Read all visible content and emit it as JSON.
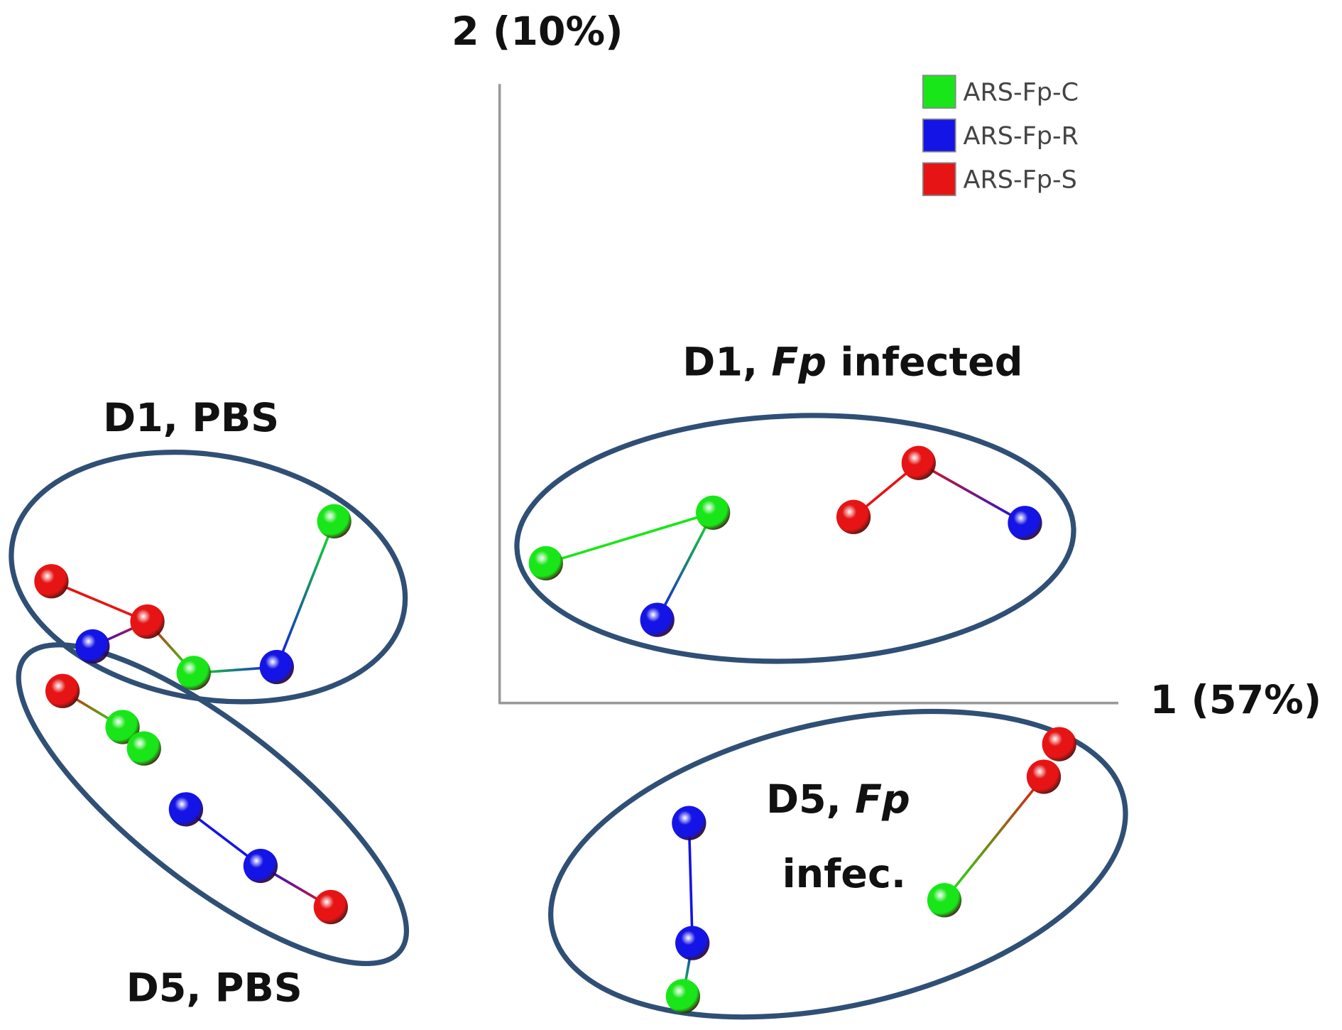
{
  "chart_data": {
    "type": "scatter",
    "x_label": "1 (57%)",
    "y_label": "2 (10%)",
    "xlim": [
      -5.83,
      9.83
    ],
    "ylim": [
      -3.814,
      8.2
    ],
    "legend": "upper right",
    "series": [
      {
        "name": "ARS-Fp-C",
        "color": "#19e619",
        "x": [
          -1.93,
          -3.57,
          -4.4,
          -4.15,
          0.54,
          2.49,
          5.19,
          2.14
        ],
        "values": [
          2.12,
          0.35,
          -0.28,
          -0.53,
          1.63,
          2.22,
          -2.3,
          -3.42
        ]
      },
      {
        "name": "ARS-Fp-R",
        "color": "#1414e6",
        "x": [
          -4.75,
          -2.6,
          -3.66,
          -2.79,
          1.84,
          6.13,
          2.21,
          2.25
        ],
        "values": [
          0.66,
          0.42,
          -1.24,
          -1.9,
          0.97,
          2.1,
          -1.4,
          -2.8
        ]
      },
      {
        "name": "ARS-Fp-S",
        "color": "#e61414",
        "x": [
          -5.23,
          -4.11,
          -5.1,
          -1.97,
          4.13,
          4.89,
          6.53,
          6.35
        ],
        "values": [
          1.42,
          0.95,
          0.14,
          -2.38,
          2.17,
          2.8,
          -0.48,
          -0.86
        ]
      }
    ],
    "links": [
      [
        [
          2,
          0
        ],
        [
          2,
          1
        ]
      ],
      [
        [
          2,
          1
        ],
        [
          1,
          0
        ]
      ],
      [
        [
          2,
          1
        ],
        [
          0,
          1
        ]
      ],
      [
        [
          0,
          1
        ],
        [
          1,
          1
        ]
      ],
      [
        [
          1,
          1
        ],
        [
          0,
          0
        ]
      ],
      [
        [
          2,
          2
        ],
        [
          0,
          2
        ]
      ],
      [
        [
          1,
          2
        ],
        [
          1,
          3
        ]
      ],
      [
        [
          1,
          3
        ],
        [
          2,
          3
        ]
      ],
      [
        [
          0,
          4
        ],
        [
          0,
          5
        ]
      ],
      [
        [
          0,
          5
        ],
        [
          1,
          4
        ]
      ],
      [
        [
          2,
          4
        ],
        [
          2,
          5
        ]
      ],
      [
        [
          2,
          5
        ],
        [
          1,
          5
        ]
      ],
      [
        [
          2,
          7
        ],
        [
          0,
          6
        ]
      ],
      [
        [
          1,
          6
        ],
        [
          1,
          7
        ]
      ],
      [
        [
          1,
          7
        ],
        [
          0,
          7
        ]
      ]
    ],
    "annotations": [
      {
        "text": [
          "D1, PBS"
        ]
      },
      {
        "text": [
          "D5, PBS"
        ]
      },
      {
        "text": [
          "D1, ",
          "Fp",
          " infected"
        ]
      },
      {
        "text": [
          "D5, ",
          "Fp"
        ]
      },
      {
        "text": [
          "infec."
        ]
      }
    ]
  }
}
